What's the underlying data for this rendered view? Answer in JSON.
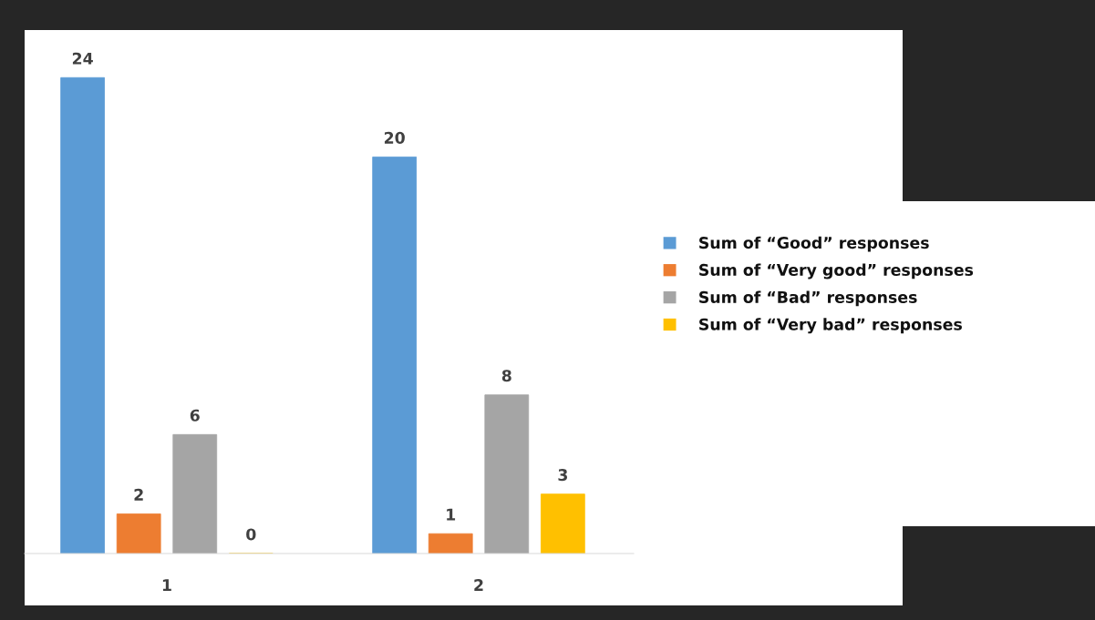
{
  "chart_data": {
    "type": "bar",
    "categories": [
      "1",
      "2"
    ],
    "series": [
      {
        "name": "Sum of “Good” responses",
        "color": "#5b9bd5",
        "values": [
          24,
          20
        ]
      },
      {
        "name": "Sum of “Very good” responses",
        "color": "#ed7d31",
        "values": [
          2,
          1
        ]
      },
      {
        "name": "Sum of “Bad” responses",
        "color": "#a5a5a5",
        "values": [
          6,
          8
        ]
      },
      {
        "name": "Sum of “Very bad” responses",
        "color": "#ffc000",
        "values": [
          0,
          3
        ]
      }
    ],
    "data_labels": true,
    "legend": "right",
    "grid": false
  }
}
